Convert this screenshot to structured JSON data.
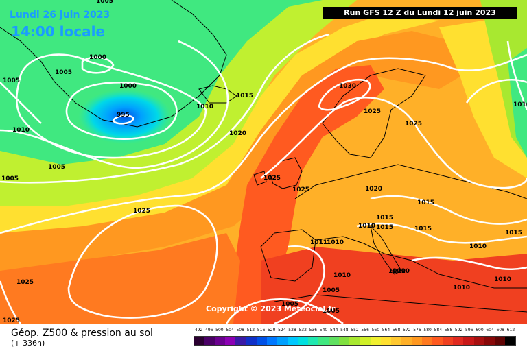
{
  "header": {
    "date": "Lundi 26 juin 2023",
    "local_time": "14:00 locale",
    "run_info": "Run GFS 12 Z du Lundi 12 juin 2023"
  },
  "copyright": "Copyright © 2023 Meteociel.fr",
  "footer": {
    "title": "Géop. Z500 & pression au sol",
    "lead_time": "(+ 336h)"
  },
  "scale": {
    "labels": [
      "492",
      "496",
      "500",
      "504",
      "508",
      "512",
      "516",
      "520",
      "524",
      "528",
      "532",
      "536",
      "540",
      "544",
      "548",
      "552",
      "556",
      "560",
      "564",
      "568",
      "572",
      "576",
      "580",
      "584",
      "588",
      "592",
      "596",
      "600",
      "604",
      "608",
      "612"
    ],
    "colors": [
      "#2a0030",
      "#4a0066",
      "#6a008f",
      "#8b00b3",
      "#3a1aa6",
      "#1030c8",
      "#0050e6",
      "#0078ff",
      "#00a0ff",
      "#00c8ff",
      "#00e0e0",
      "#20e8b0",
      "#40e880",
      "#60e060",
      "#80e040",
      "#a8e830",
      "#d0f028",
      "#f0f030",
      "#ffe030",
      "#ffc830",
      "#ffb028",
      "#ff9820",
      "#ff7a20",
      "#ff5a20",
      "#f04020",
      "#e02a20",
      "#c81818",
      "#a81010",
      "#880808",
      "#600404",
      "#000000"
    ]
  },
  "pressure_labels": [
    "1005",
    "1005",
    "1000",
    "1005",
    "1000",
    "995",
    "1010",
    "1015",
    "1010",
    "1020",
    "1030",
    "1025",
    "1025",
    "1005",
    "1005",
    "1025",
    "1020",
    "1025",
    "1015",
    "1015",
    "1010",
    "1025",
    "1015",
    "1015",
    "1011",
    "1015",
    "1010",
    "1010",
    "1010",
    "1010",
    "1010",
    "1010",
    "1005",
    "1025",
    "1025",
    "1005",
    "1005",
    "1010",
    "1010"
  ]
}
